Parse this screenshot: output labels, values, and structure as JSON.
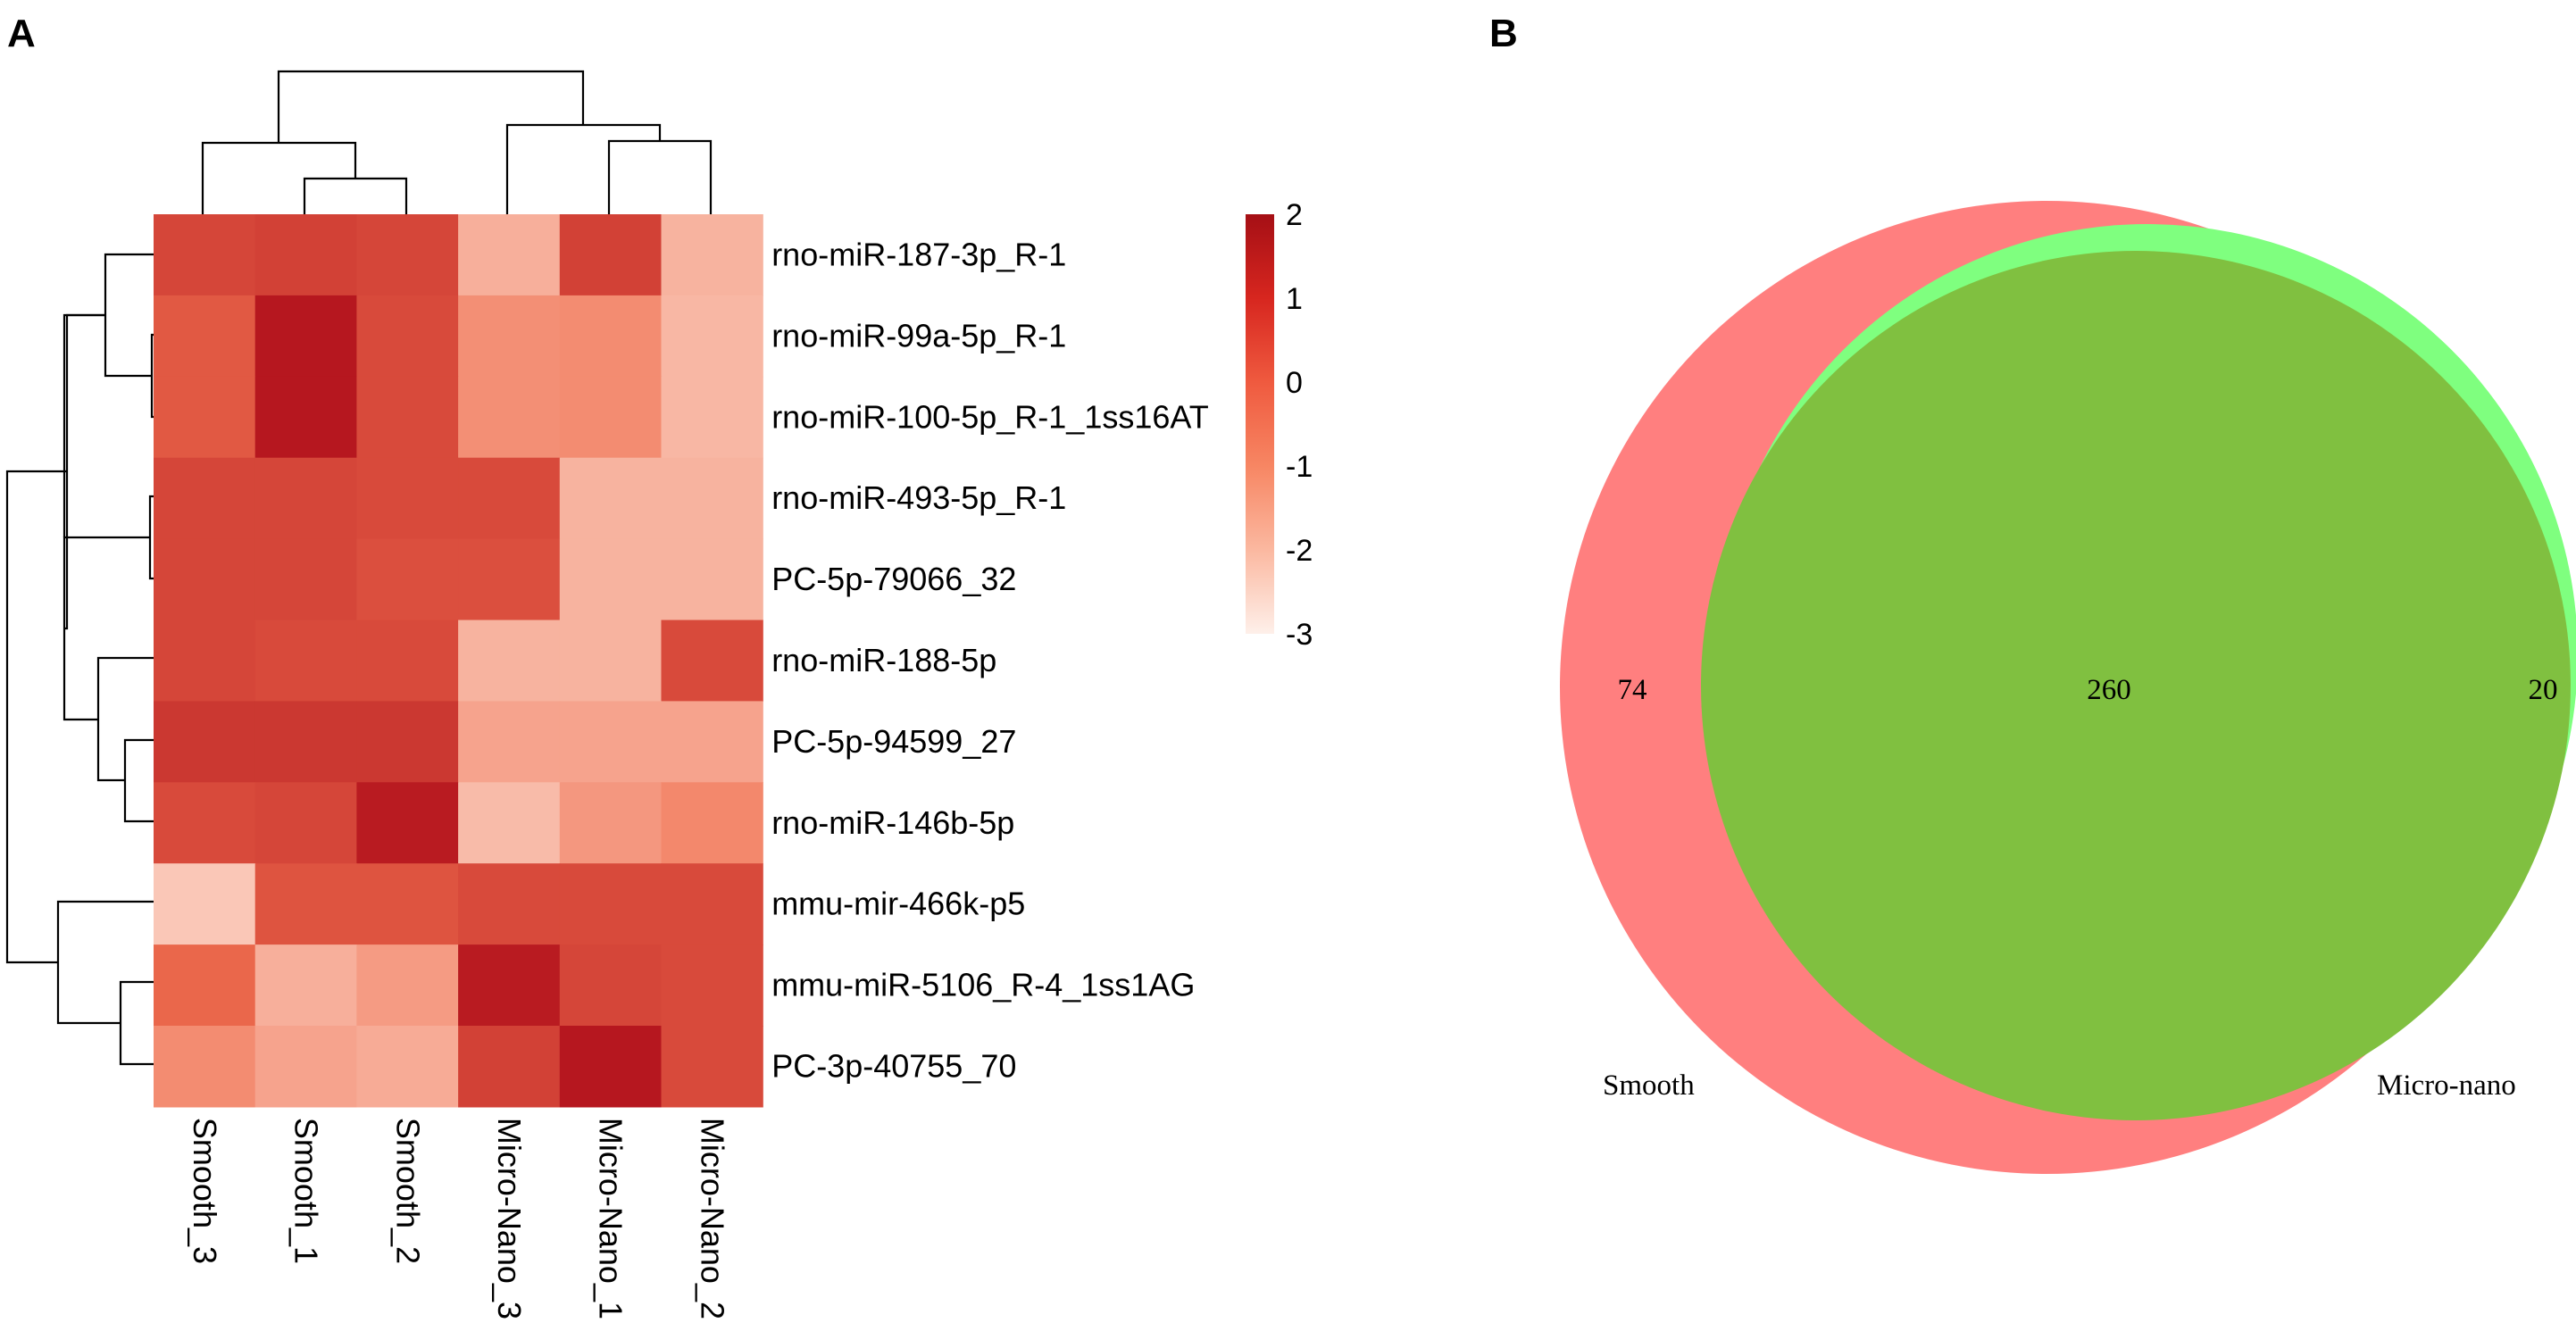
{
  "panels": {
    "a_label": "A",
    "b_label": "B"
  },
  "chart_data": [
    {
      "type": "heatmap",
      "panel": "A",
      "columns": [
        "Smooth_3",
        "Smooth_1",
        "Smooth_2",
        "Micro-Nano_3",
        "Micro-Nano_1",
        "Micro-Nano_2"
      ],
      "rows": [
        "rno-miR-187-3p_R-1",
        "rno-miR-99a-5p_R-1",
        "rno-miR-100-5p_R-1_1ss16AT",
        "rno-miR-493-5p_R-1",
        "PC-5p-79066_32",
        "rno-miR-188-5p",
        "PC-5p-94599_27",
        "rno-miR-146b-5p",
        "mmu-mir-466k-p5",
        "mmu-miR-5106_R-4_1ss1AG",
        "PC-3p-40755_70"
      ],
      "values": [
        [
          0.9,
          1.0,
          0.9,
          -1.6,
          1.0,
          -1.7
        ],
        [
          0.5,
          1.9,
          0.8,
          -0.8,
          -0.7,
          -1.8
        ],
        [
          0.5,
          1.9,
          0.8,
          -0.8,
          -0.7,
          -1.8
        ],
        [
          0.9,
          0.9,
          0.8,
          0.8,
          -1.7,
          -1.7
        ],
        [
          0.9,
          0.9,
          0.7,
          0.7,
          -1.7,
          -1.7
        ],
        [
          0.9,
          0.8,
          0.8,
          -1.7,
          -1.7,
          0.8
        ],
        [
          1.2,
          1.2,
          1.2,
          -1.3,
          -1.3,
          -1.3
        ],
        [
          0.8,
          0.9,
          1.8,
          -1.9,
          -1.0,
          -0.6
        ],
        [
          -2.2,
          0.6,
          0.6,
          0.8,
          0.8,
          0.8
        ],
        [
          0.2,
          -1.6,
          -1.1,
          1.8,
          0.9,
          0.8
        ],
        [
          -0.7,
          -1.3,
          -1.5,
          1.0,
          1.9,
          0.8
        ]
      ],
      "color_scale": {
        "min": -3,
        "max": 2,
        "ticks": [
          "2",
          "1",
          "0",
          "-1",
          "-2",
          "-3"
        ],
        "colors": {
          "low": "#fde6dc",
          "mid": "#f07050",
          "high": "#b3121c"
        }
      }
    },
    {
      "type": "venn",
      "panel": "B",
      "sets": [
        {
          "name": "Smooth",
          "only": "74",
          "color": "#ff7f7f"
        },
        {
          "name": "Micro-nano",
          "only": "20",
          "color": "#7fff7f"
        }
      ],
      "intersection": "260",
      "overlap_color": "#80c040"
    }
  ]
}
